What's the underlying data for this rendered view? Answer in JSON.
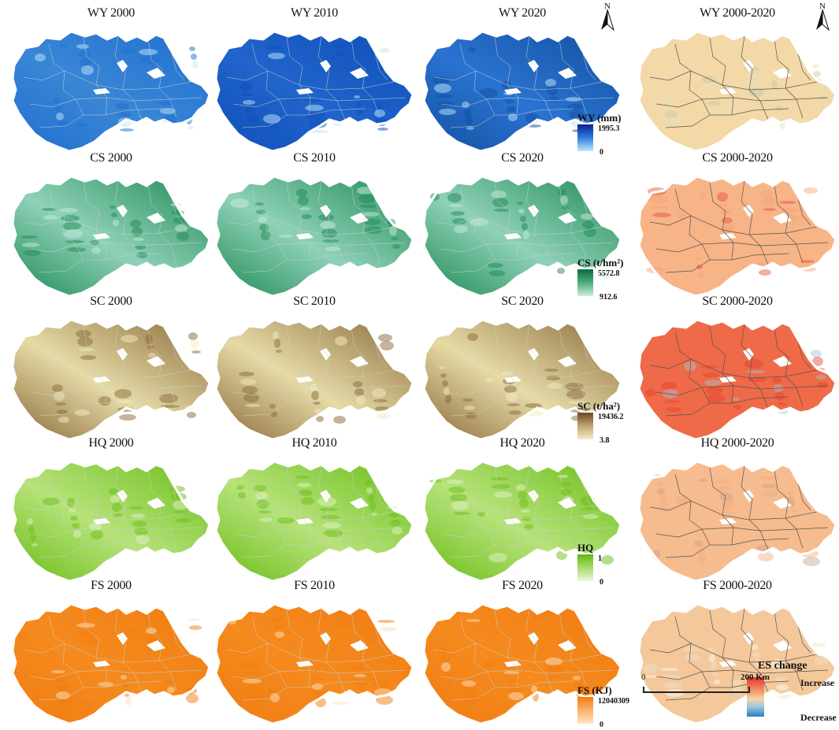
{
  "rows": [
    {
      "key": "wy",
      "titles": [
        "WY 2000",
        "WY 2010",
        "WY 2020",
        "WY 2000-2020"
      ],
      "colors": [
        [
          "#3a86d6",
          "#1f6fcf",
          "#bfe7f7"
        ],
        [
          "#2064cc",
          "#0f4fb8",
          "#bfe7f7"
        ],
        [
          "#2a73d2",
          "#12509f",
          "#bfe7f7"
        ]
      ],
      "change_colors": [
        "#f3d9a8",
        "#e8e0b9",
        "#c6c7a8"
      ],
      "legend": {
        "title": "WY (mm)",
        "max": "1995.3",
        "min": "0",
        "gradient": [
          "#0a1f8f",
          "#2f7ee0",
          "#bfe9f7"
        ]
      }
    },
    {
      "key": "cs",
      "titles": [
        "CS 2000",
        "CS 2010",
        "CS 2020",
        "CS 2000-2020"
      ],
      "colors": [
        [
          "#8fd1b8",
          "#1f8a55",
          "#c9ece0"
        ],
        [
          "#8fd1b8",
          "#1f8a55",
          "#c9ece0"
        ],
        [
          "#8fd1b8",
          "#1f8a55",
          "#c9ece0"
        ]
      ],
      "change_colors": [
        "#f7b487",
        "#f2a277",
        "#e24b3a"
      ],
      "legend": {
        "title": "CS (t/hm²)",
        "max": "5572.8",
        "min": "912.6",
        "gradient": [
          "#0b6b3a",
          "#4cae7c",
          "#cdeee0"
        ]
      }
    },
    {
      "key": "sc",
      "titles": [
        "SC 2000",
        "SC 2010",
        "SC 2020",
        "SC 2000-2020"
      ],
      "colors": [
        [
          "#e6dba6",
          "#8a6a3b",
          "#f2ebc3"
        ],
        [
          "#e6dba6",
          "#8a6a3b",
          "#f2ebc3"
        ],
        [
          "#e6dba6",
          "#8a6a3b",
          "#f2ebc3"
        ]
      ],
      "change_colors": [
        "#ee6a48",
        "#e4412d",
        "#a8c3cf"
      ],
      "legend": {
        "title": "SC (t/ha²)",
        "max": "19436.2",
        "min": "3.8",
        "gradient": [
          "#6b4a26",
          "#bfa56f",
          "#f5eec9"
        ]
      }
    },
    {
      "key": "hq",
      "titles": [
        "HQ 2000",
        "HQ 2010",
        "HQ 2020",
        "HQ 2000-2020"
      ],
      "colors": [
        [
          "#b7e27a",
          "#6bbd19",
          "#e2f3c6"
        ],
        [
          "#b7e27a",
          "#6bbd19",
          "#e2f3c6"
        ],
        [
          "#b7e27a",
          "#6bbd19",
          "#e2f3c6"
        ]
      ],
      "change_colors": [
        "#f6bb8e",
        "#f3ad80",
        "#c9a08c"
      ],
      "legend": {
        "title": "HQ",
        "max": "1",
        "min": "0",
        "gradient": [
          "#5fb80f",
          "#a9db6b",
          "#eef8dd"
        ]
      }
    },
    {
      "key": "fs",
      "titles": [
        "FS 2000",
        "FS 2010",
        "FS 2020",
        "FS 2000-2020"
      ],
      "colors": [
        [
          "#f58a1e",
          "#f07d12",
          "#fde2c0"
        ],
        [
          "#f58a1e",
          "#f07d12",
          "#fde2c0"
        ],
        [
          "#f58a1e",
          "#f07d12",
          "#fde2c0"
        ]
      ],
      "change_colors": [
        "#f4c89a",
        "#efe3cf",
        "#ffffff"
      ],
      "legend": {
        "title": "FS (KJ)",
        "max": "12040309",
        "min": "0",
        "gradient": [
          "#f37a12",
          "#f9b36c",
          "#fde6c9"
        ]
      }
    }
  ],
  "north_label": "N",
  "es_legend": {
    "title": "ES change",
    "increase": "Increase",
    "decrease": "Decrease"
  },
  "scale_bar": {
    "start": "0",
    "end": "200 Km"
  }
}
